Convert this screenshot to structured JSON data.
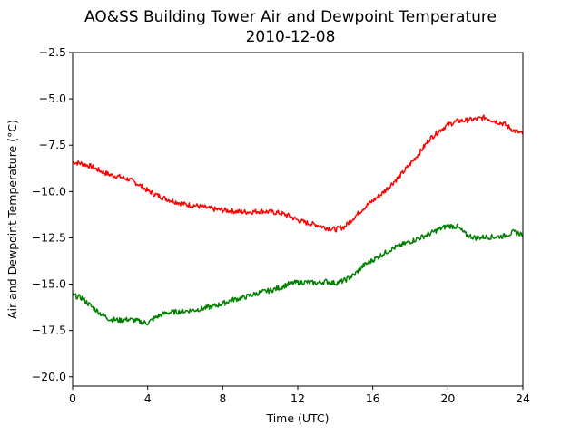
{
  "chart_data": {
    "type": "line",
    "title": "AO&SS Building Tower Air and Dewpoint Temperature",
    "subtitle": "2010-12-08",
    "xlabel": "Time (UTC)",
    "ylabel": "Air and Dewpoint Temperature (°C)",
    "xlim": [
      0,
      24
    ],
    "ylim": [
      -20.5,
      -2.5
    ],
    "xticks": [
      0,
      4,
      8,
      12,
      16,
      20,
      24
    ],
    "xtick_labels": [
      "0",
      "4",
      "8",
      "12",
      "16",
      "20",
      "24"
    ],
    "yticks": [
      -2.5,
      -5.0,
      -7.5,
      -10.0,
      -12.5,
      -15.0,
      -17.5,
      -20.0
    ],
    "ytick_labels": [
      "−2.5",
      "−5.0",
      "−7.5",
      "−10.0",
      "−12.5",
      "−15.0",
      "−17.5",
      "−20.0"
    ],
    "grid": false,
    "series": [
      {
        "color": "#ff0000",
        "x": [
          0,
          0.5,
          1,
          1.5,
          2,
          2.5,
          3,
          3.5,
          4,
          4.5,
          5,
          5.5,
          6,
          6.5,
          7,
          7.5,
          8,
          8.5,
          9,
          9.5,
          10,
          10.5,
          11,
          11.5,
          12,
          12.5,
          13,
          13.5,
          14,
          14.5,
          15,
          15.5,
          16,
          16.5,
          17,
          17.5,
          18,
          18.5,
          19,
          19.5,
          20,
          20.5,
          21,
          21.5,
          22,
          22.5,
          23,
          23.5,
          24
        ],
        "values": [
          -8.4,
          -8.5,
          -8.65,
          -8.9,
          -9.1,
          -9.2,
          -9.35,
          -9.6,
          -9.95,
          -10.2,
          -10.4,
          -10.55,
          -10.7,
          -10.75,
          -10.85,
          -10.95,
          -11.0,
          -11.05,
          -11.1,
          -11.1,
          -11.05,
          -11.1,
          -11.15,
          -11.3,
          -11.55,
          -11.7,
          -11.8,
          -11.95,
          -12.05,
          -11.9,
          -11.4,
          -10.9,
          -10.5,
          -10.1,
          -9.6,
          -9.1,
          -8.5,
          -7.9,
          -7.2,
          -6.75,
          -6.4,
          -6.2,
          -6.15,
          -6.1,
          -6.0,
          -6.2,
          -6.35,
          -6.7,
          -6.9
        ]
      },
      {
        "color": "#008000",
        "x": [
          0,
          0.5,
          1,
          1.5,
          2,
          2.5,
          3,
          3.5,
          4,
          4.5,
          5,
          5.5,
          6,
          6.5,
          7,
          7.5,
          8,
          8.5,
          9,
          9.5,
          10,
          10.5,
          11,
          11.5,
          12,
          12.5,
          13,
          13.5,
          14,
          14.5,
          15,
          15.5,
          16,
          16.5,
          17,
          17.5,
          18,
          18.5,
          19,
          19.5,
          20,
          20.5,
          21,
          21.5,
          22,
          22.5,
          23,
          23.5,
          24
        ],
        "values": [
          -15.6,
          -15.75,
          -16.2,
          -16.6,
          -16.9,
          -16.95,
          -16.9,
          -17.0,
          -17.1,
          -16.75,
          -16.55,
          -16.5,
          -16.45,
          -16.4,
          -16.3,
          -16.2,
          -16.05,
          -15.85,
          -15.75,
          -15.6,
          -15.45,
          -15.35,
          -15.2,
          -15.0,
          -14.9,
          -14.9,
          -14.95,
          -14.85,
          -14.95,
          -14.8,
          -14.5,
          -14.0,
          -13.7,
          -13.4,
          -13.1,
          -12.9,
          -12.7,
          -12.5,
          -12.3,
          -12.05,
          -11.85,
          -11.9,
          -12.35,
          -12.5,
          -12.45,
          -12.45,
          -12.4,
          -12.2,
          -12.3
        ]
      }
    ]
  }
}
